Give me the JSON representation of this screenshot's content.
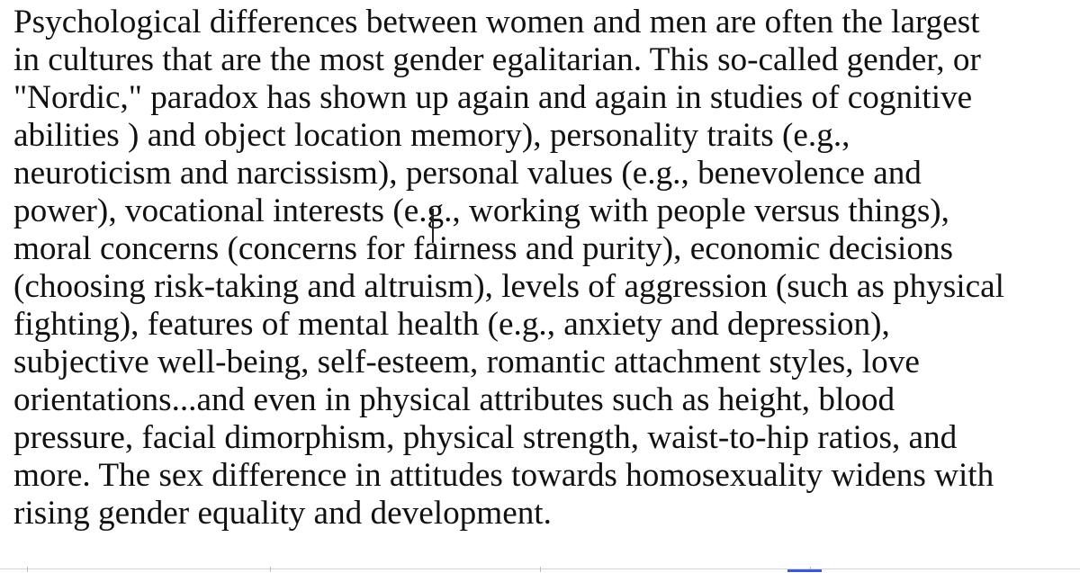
{
  "document": {
    "lines": [
      "Psychological differences between women and men are often the largest",
      "in cultures that are the most gender egalitarian. This so-called gender, or",
      "\"Nordic,\" paradox has shown up again and again in studies of cognitive",
      "abilities ) and object location memory), personality traits (e.g.,",
      "neuroticism and narcissism), personal values (e.g., benevolence and",
      "power), vocational interests (e.g., working with people versus things),",
      "moral concerns (concerns for fairness and purity), economic decisions",
      "(choosing risk-taking and altruism), levels of aggression (such as physical",
      "fighting), features of mental health (e.g., anxiety and depression),",
      "subjective well-being, self-esteem, romantic attachment styles, love",
      "orientations...and even in physical attributes such as height, blood",
      "pressure, facial dimorphism, physical strength, waist-to-hip ratios, and",
      "more. The sex difference in attitudes towards homosexuality widens with",
      "rising gender equality and development."
    ]
  },
  "colors": {
    "text": "#111111",
    "background": "#ffffff",
    "selection_marker": "#3b5bd6"
  }
}
